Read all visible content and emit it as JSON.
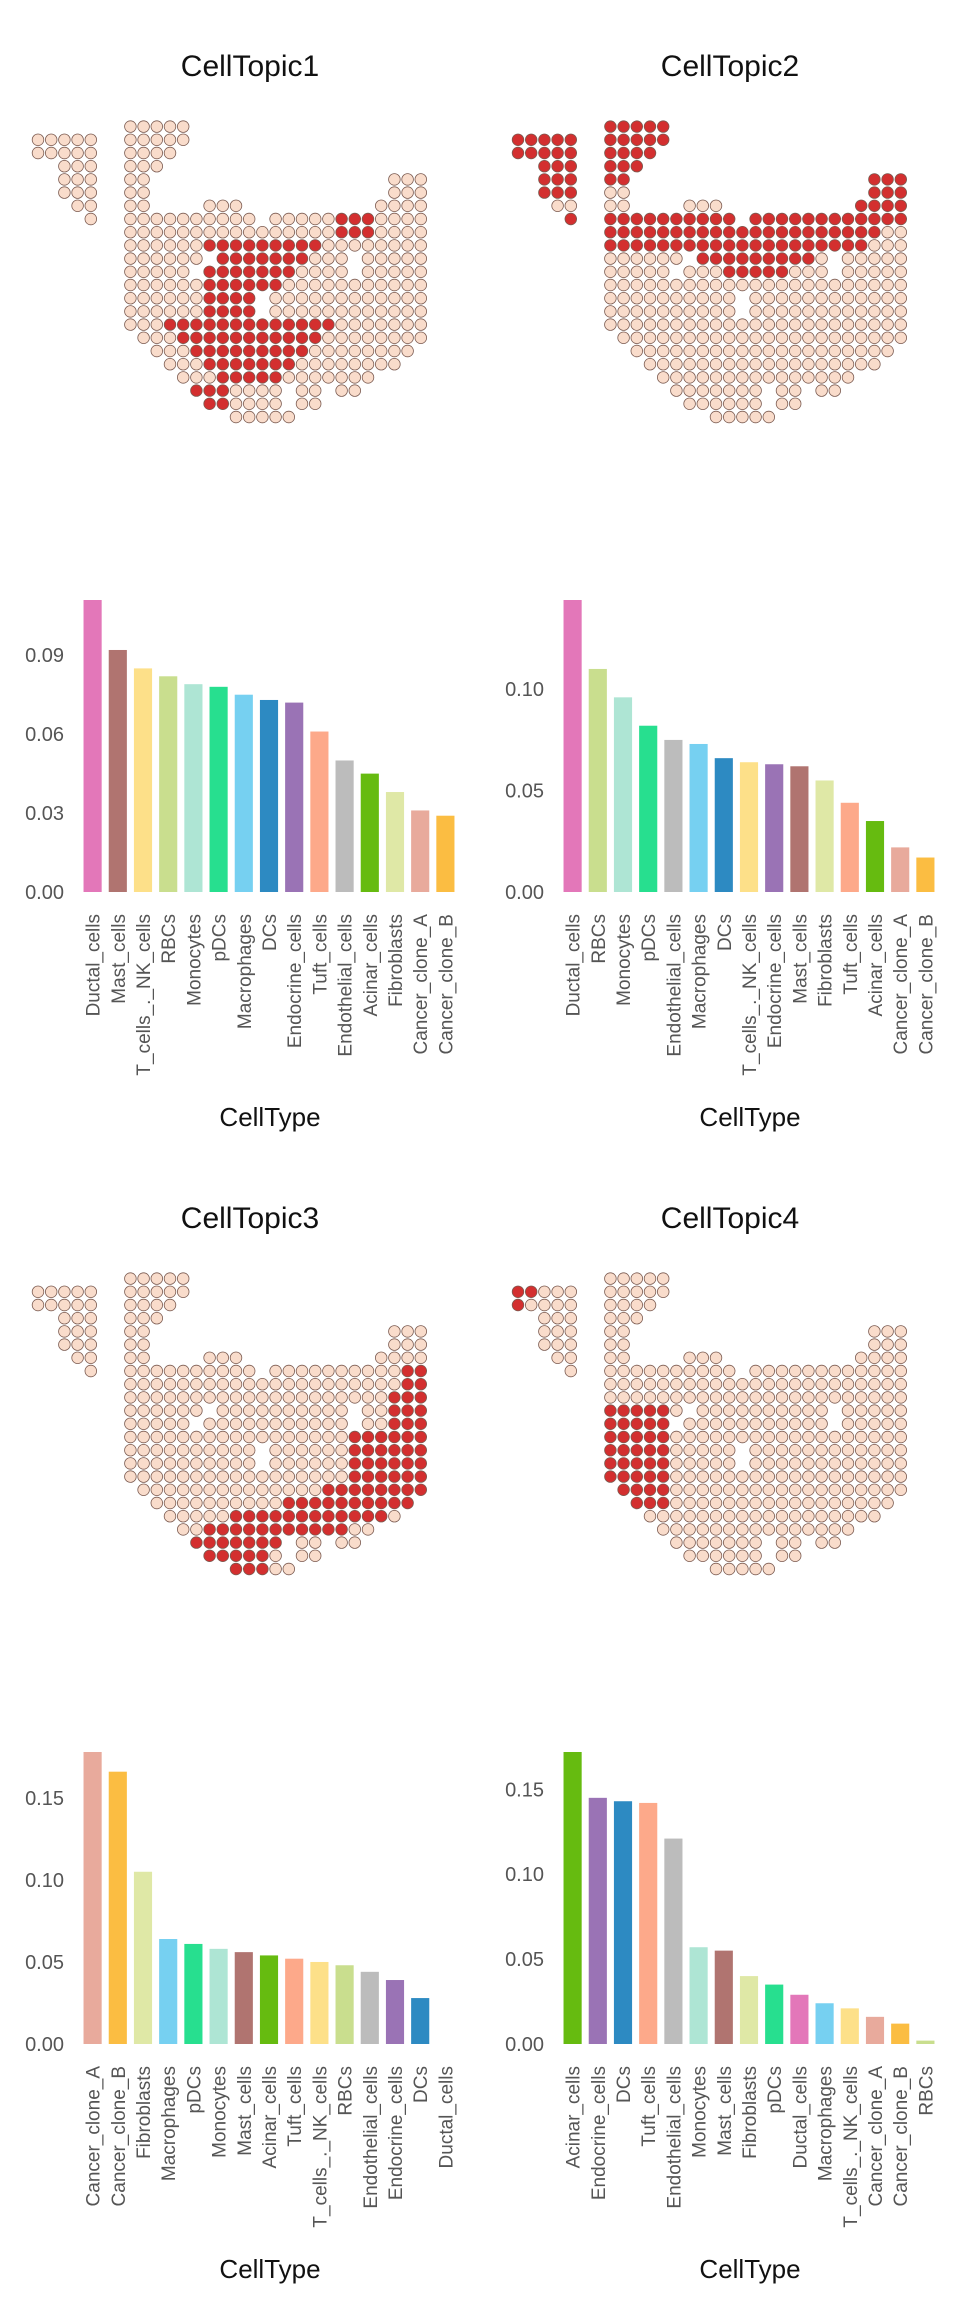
{
  "colors": {
    "spot_high": "#d32f2f",
    "spot_low": "#f9dccb",
    "spot_stroke": "#7a5a50"
  },
  "category_colors": {
    "Ductal_cells": "#e377b9",
    "Mast_cells": "#b07470",
    "T_cells_._NK_cells": "#fde089",
    "RBCs": "#c9de8e",
    "Monocytes": "#aee5d4",
    "pDCs": "#27df8f",
    "Macrophages": "#76d0f1",
    "DCs": "#2d8ac2",
    "Endocrine_cells": "#9a73b5",
    "Tuft_cells": "#fda98a",
    "Endothelial_cells": "#bcbcbc",
    "Acinar_cells": "#66bb10",
    "Fibroblasts": "#dfe8a6",
    "Cancer_clone_A": "#e8aa9c",
    "Cancer_clone_B": "#fbbd42"
  },
  "chart_data": [
    {
      "type": "bar",
      "title": "CellTopic1",
      "xlabel": "CellType",
      "ylabel": "",
      "categories": [
        "Ductal_cells",
        "Mast_cells",
        "T_cells_._NK_cells",
        "RBCs",
        "Monocytes",
        "pDCs",
        "Macrophages",
        "DCs",
        "Endocrine_cells",
        "Tuft_cells",
        "Endothelial_cells",
        "Acinar_cells",
        "Fibroblasts",
        "Cancer_clone_A",
        "Cancer_clone_B"
      ],
      "values": [
        0.111,
        0.092,
        0.085,
        0.082,
        0.079,
        0.078,
        0.075,
        0.073,
        0.072,
        0.061,
        0.05,
        0.045,
        0.038,
        0.031,
        0.029
      ],
      "yticks": [
        0.0,
        0.03,
        0.06,
        0.09
      ],
      "ytick_labels": [
        "0.00",
        "0.03",
        "0.06",
        "0.09"
      ],
      "ylim": [
        0,
        0.111
      ],
      "grid": false,
      "legend": "none"
    },
    {
      "type": "bar",
      "title": "CellTopic2",
      "xlabel": "CellType",
      "ylabel": "",
      "categories": [
        "Ductal_cells",
        "RBCs",
        "Monocytes",
        "pDCs",
        "Endothelial_cells",
        "Macrophages",
        "DCs",
        "T_cells_._NK_cells",
        "Endocrine_cells",
        "Mast_cells",
        "Fibroblasts",
        "Tuft_cells",
        "Acinar_cells",
        "Cancer_clone_A",
        "Cancer_clone_B"
      ],
      "values": [
        0.144,
        0.11,
        0.096,
        0.082,
        0.075,
        0.073,
        0.066,
        0.064,
        0.063,
        0.062,
        0.055,
        0.044,
        0.035,
        0.022,
        0.017
      ],
      "yticks": [
        0.0,
        0.05,
        0.1
      ],
      "ytick_labels": [
        "0.00",
        "0.05",
        "0.10"
      ],
      "ylim": [
        0,
        0.144
      ],
      "grid": false,
      "legend": "none"
    },
    {
      "type": "bar",
      "title": "CellTopic3",
      "xlabel": "CellType",
      "ylabel": "",
      "categories": [
        "Cancer_clone_A",
        "Cancer_clone_B",
        "Fibroblasts",
        "Macrophages",
        "pDCs",
        "Monocytes",
        "Mast_cells",
        "Acinar_cells",
        "Tuft_cells",
        "T_cells_._NK_cells",
        "RBCs",
        "Endothelial_cells",
        "Endocrine_cells",
        "DCs",
        "Ductal_cells"
      ],
      "values": [
        0.178,
        0.166,
        0.105,
        0.064,
        0.061,
        0.058,
        0.056,
        0.054,
        0.052,
        0.05,
        0.048,
        0.044,
        0.039,
        0.028,
        0.0
      ],
      "yticks": [
        0.0,
        0.05,
        0.1,
        0.15
      ],
      "ytick_labels": [
        "0.00",
        "0.05",
        "0.10",
        "0.15"
      ],
      "ylim": [
        0,
        0.178
      ],
      "grid": false,
      "legend": "none"
    },
    {
      "type": "bar",
      "title": "CellTopic4",
      "xlabel": "CellType",
      "ylabel": "",
      "categories": [
        "Acinar_cells",
        "Endocrine_cells",
        "DCs",
        "Tuft_cells",
        "Endothelial_cells",
        "Monocytes",
        "Mast_cells",
        "Fibroblasts",
        "pDCs",
        "Ductal_cells",
        "Macrophages",
        "T_cells_._NK_cells",
        "Cancer_clone_A",
        "Cancer_clone_B",
        "RBCs"
      ],
      "values": [
        0.172,
        0.145,
        0.143,
        0.142,
        0.121,
        0.057,
        0.055,
        0.04,
        0.035,
        0.029,
        0.024,
        0.021,
        0.016,
        0.012,
        0.002
      ],
      "yticks": [
        0.0,
        0.05,
        0.1,
        0.15
      ],
      "ytick_labels": [
        "0.00",
        "0.05",
        "0.10",
        "0.15"
      ],
      "ylim": [
        0,
        0.172
      ],
      "grid": false,
      "legend": "none"
    }
  ]
}
